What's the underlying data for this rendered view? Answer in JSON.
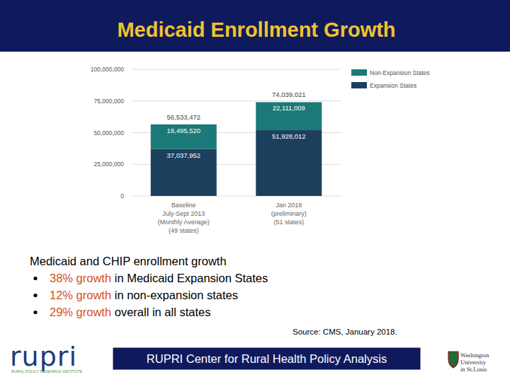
{
  "chart_data": {
    "type": "bar",
    "title": "Medicaid Enrollment Growth",
    "categories": [
      "Baseline\nJuly-Sept 2013\n(Monthly Average)\n(49 states)",
      "Jan 2018\n(preliminary)\n(51 states)"
    ],
    "series": [
      {
        "name": "Expansion States",
        "color": "#1c3f5e",
        "values": [
          37037952,
          51928012
        ],
        "value_labels": [
          "37,037,952",
          "51,928,012"
        ]
      },
      {
        "name": "Non-Expansion States",
        "color": "#1b7a77",
        "values": [
          19495520,
          22111009
        ],
        "value_labels": [
          "19,495,520",
          "22,111,009"
        ]
      }
    ],
    "totals": [
      56533472,
      74039021
    ],
    "total_labels": [
      "56,533,472",
      "74,039,021"
    ],
    "ylim": [
      0,
      100000000
    ],
    "yticks": [
      0,
      {
        "value": 25000000,
        "label": "25,000,000"
      },
      {
        "value": 50000000,
        "label": "50,000,000"
      },
      {
        "value": 75000000,
        "label": "75,000,000"
      },
      {
        "value": 100000000,
        "label": "100,000,000"
      }
    ],
    "stacked": true,
    "grid": true,
    "legend": "upper right",
    "data_labels": true
  },
  "slide": {
    "heading": "Medicaid and CHIP enrollment growth",
    "bullets": [
      {
        "highlight": "38% growth",
        "text": " in Medicaid Expansion States"
      },
      {
        "highlight": "12% growth",
        "text": " in non-expansion states"
      },
      {
        "highlight": "29% growth",
        "text": " overall in all states"
      }
    ],
    "source": "Source: CMS, January 2018.",
    "footer": "RUPRI Center for Rural Health Policy Analysis",
    "left_logo": {
      "name": "rupri",
      "tagline": "RURAL POLICY RESEARCH INSTITUTE"
    },
    "right_logo": [
      "Washington",
      "University",
      "in St.Louis"
    ]
  }
}
